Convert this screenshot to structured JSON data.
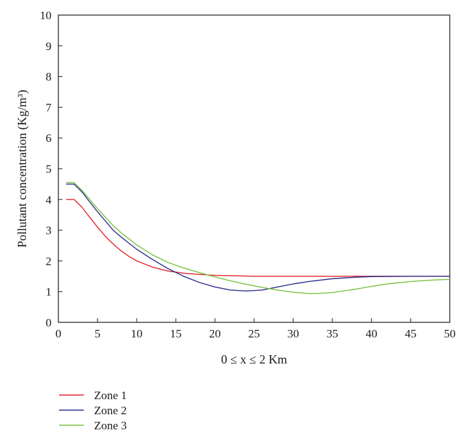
{
  "chart_data": {
    "type": "line",
    "xlabel": "0 ≤ x ≤ 2 Km",
    "ylabel": "Pollutant concentration (Kg/m³)",
    "xlim": [
      0,
      50
    ],
    "ylim": [
      0,
      10
    ],
    "xticks": [
      0,
      5,
      10,
      15,
      20,
      25,
      30,
      35,
      40,
      45,
      50
    ],
    "yticks": [
      0,
      1,
      2,
      3,
      4,
      5,
      6,
      7,
      8,
      9,
      10
    ],
    "grid": false,
    "legend_position": "bottom-left, outside plot",
    "series": [
      {
        "name": "Zone 1",
        "color": "#e0242a",
        "x": [
          1,
          2,
          3,
          4,
          5,
          6,
          7,
          8,
          9,
          10,
          12,
          14,
          16,
          18,
          20,
          25,
          30,
          35,
          40,
          45,
          50
        ],
        "y": [
          4.0,
          4.0,
          3.75,
          3.42,
          3.1,
          2.8,
          2.55,
          2.33,
          2.15,
          2.0,
          1.8,
          1.67,
          1.6,
          1.56,
          1.53,
          1.5,
          1.5,
          1.5,
          1.5,
          1.5,
          1.5
        ]
      },
      {
        "name": "Zone 2",
        "color": "#2e2e8c",
        "x": [
          1,
          2,
          3,
          4,
          5,
          6,
          7,
          8,
          10,
          12,
          14,
          16,
          18,
          20,
          22,
          24,
          26,
          28,
          30,
          32,
          35,
          38,
          40,
          45,
          50
        ],
        "y": [
          4.5,
          4.5,
          4.25,
          3.92,
          3.6,
          3.3,
          3.0,
          2.78,
          2.38,
          2.05,
          1.75,
          1.5,
          1.3,
          1.15,
          1.05,
          1.02,
          1.05,
          1.15,
          1.25,
          1.33,
          1.42,
          1.47,
          1.49,
          1.5,
          1.5
        ]
      },
      {
        "name": "Zone 3",
        "color": "#7ac142",
        "x": [
          1,
          2,
          3,
          4,
          5,
          6,
          7,
          8,
          10,
          12,
          14,
          16,
          18,
          20,
          22,
          24,
          26,
          28,
          30,
          32,
          33,
          35,
          38,
          40,
          42,
          45,
          48,
          50
        ],
        "y": [
          4.55,
          4.55,
          4.3,
          4.0,
          3.7,
          3.42,
          3.15,
          2.92,
          2.52,
          2.2,
          1.95,
          1.77,
          1.62,
          1.48,
          1.35,
          1.24,
          1.14,
          1.05,
          0.98,
          0.94,
          0.94,
          0.97,
          1.08,
          1.17,
          1.25,
          1.33,
          1.38,
          1.4
        ]
      }
    ]
  }
}
